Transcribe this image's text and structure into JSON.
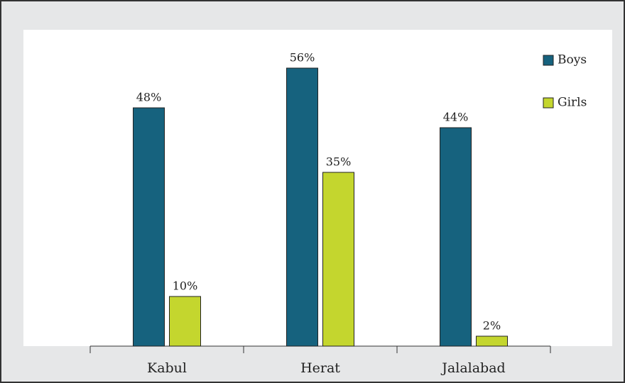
{
  "chart_data": {
    "type": "bar",
    "categories": [
      "Kabul",
      "Herat",
      "Jalalabad"
    ],
    "series": [
      {
        "name": "Boys",
        "color": "#16627e",
        "values": [
          48,
          56,
          44
        ],
        "value_labels": [
          "48%",
          "56%",
          "44%"
        ]
      },
      {
        "name": "Girls",
        "color": "#c4d62e",
        "values": [
          10,
          35,
          2
        ],
        "value_labels": [
          "10%",
          "35%",
          "2%"
        ]
      }
    ],
    "legend": "top-right"
  }
}
